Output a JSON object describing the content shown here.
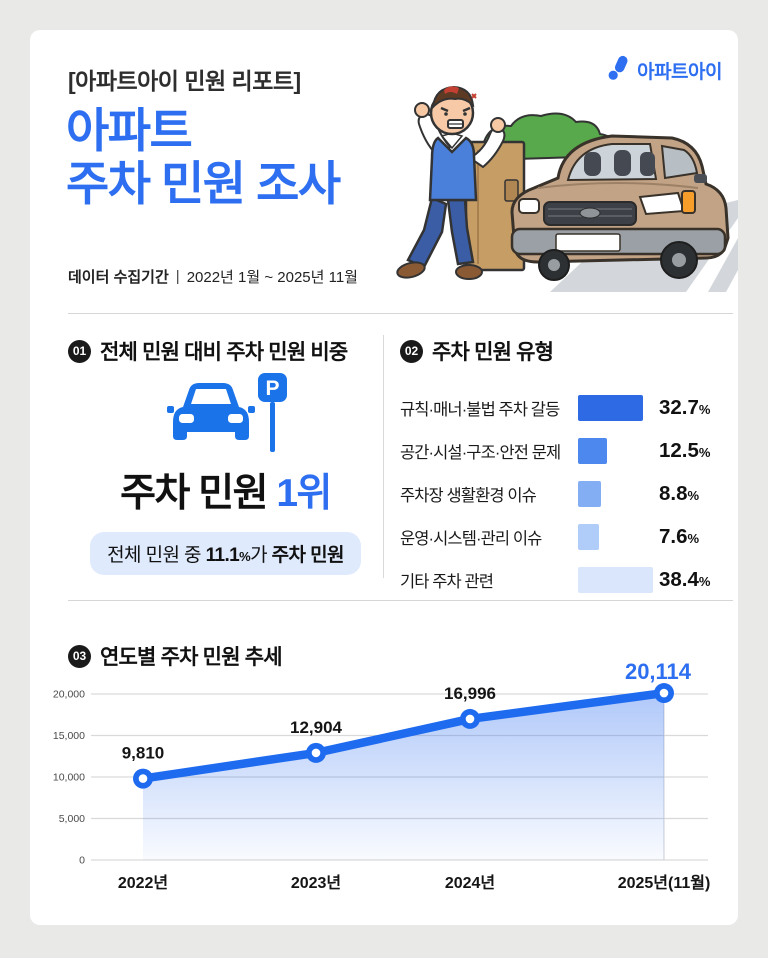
{
  "page": {
    "background": "#e9e9e7",
    "card_background": "#ffffff",
    "accent_blue": "#2d6ff0",
    "badge_color": "#1a1a1a"
  },
  "header": {
    "report_label": "[아파트아이 민원 리포트]",
    "title_line1": "아파트",
    "title_line2": "주차 민원 조사",
    "period_label": "데이터 수집기간",
    "period_separator": "|",
    "period_value": "2022년 1월 ~ 2025년 11월",
    "logo_text": "아파트아이",
    "logo_icon": "apartment-i-logo-icon",
    "illustration": "angry-man-next-to-parked-car-illustration"
  },
  "section1": {
    "badge": "01",
    "title": "전체 민원 대비 주차 민원 비중",
    "icon": "car-with-parking-sign-icon",
    "headline_black": "주차 민원",
    "headline_blue": "1위",
    "pill_prefix": "전체 민원 중 ",
    "pill_value": "11.1",
    "pill_percent_sign": "%",
    "pill_middle": "가 ",
    "pill_bold": "주차 민원"
  },
  "section2": {
    "badge": "02",
    "title": "주차 민원 유형"
  },
  "section3": {
    "badge": "03",
    "title": "연도별 주차 민원 추세"
  },
  "chart_data": [
    {
      "id": "parking-complaint-types",
      "type": "bar",
      "orientation": "horizontal",
      "title": "주차 민원 유형",
      "categories": [
        "규칙·매너·불법 주차 갈등",
        "공간·시설·구조·안전 문제",
        "주차장 생활환경 이슈",
        "운영·시스템·관리 이슈",
        "기타 주차 관련"
      ],
      "values": [
        32.7,
        12.5,
        8.8,
        7.6,
        38.4
      ],
      "value_labels": [
        "32.7",
        "12.5",
        "8.8",
        "7.6",
        "38.4"
      ],
      "unit": "%",
      "bar_colors": [
        "#2e6ae4",
        "#4d88ef",
        "#84aef3",
        "#b0ccf8",
        "#d9e6fc"
      ],
      "grid": false,
      "legend": "none"
    },
    {
      "id": "yearly-parking-complaint-trend",
      "type": "line",
      "title": "연도별 주차 민원 추세",
      "categories": [
        "2022년",
        "2023년",
        "2024년",
        "2025년(11월)"
      ],
      "values": [
        9810,
        12904,
        16996,
        20114
      ],
      "point_labels": [
        "9,810",
        "12,904",
        "16,996",
        "20,114"
      ],
      "ylim": [
        0,
        20000
      ],
      "yticks": [
        0,
        5000,
        10000,
        15000,
        20000
      ],
      "ytick_labels": [
        "0",
        "5,000",
        "10,000",
        "15,000",
        "20,000"
      ],
      "grid": true,
      "area_fill": true,
      "line_color": "#1e6bf0",
      "marker": "circle-white-center",
      "highlight_last_label_color": "#2d6ff0",
      "legend": "none"
    }
  ]
}
